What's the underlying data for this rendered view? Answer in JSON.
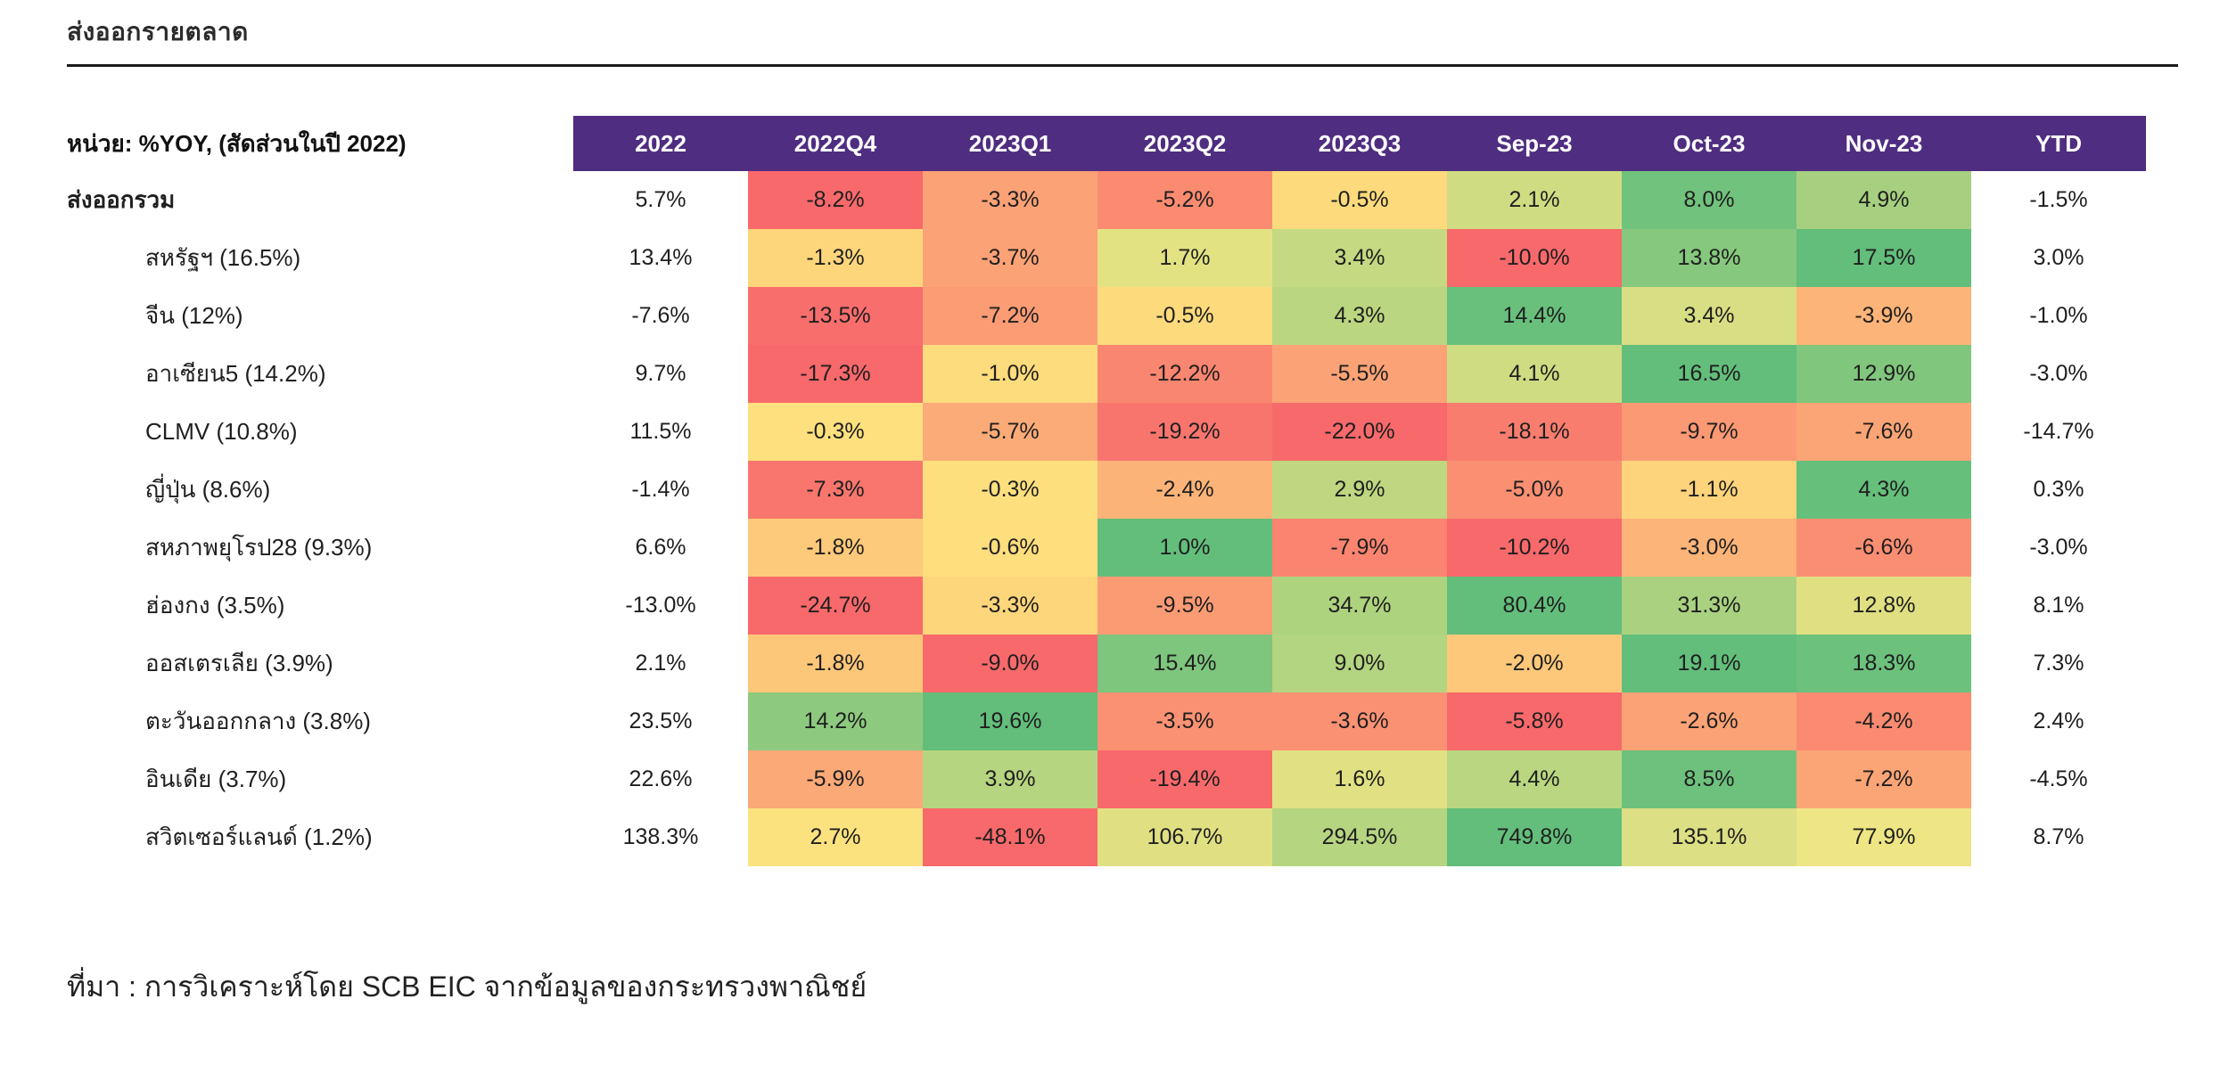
{
  "page": {
    "title": "ส่งออกรายตลาด",
    "source_note": "ที่มา : การวิเคราะห์โดย SCB EIC จากข้อมูลของกระทรวงพาณิชย์"
  },
  "colors": {
    "header_bg": "#4F2D80",
    "header_text": "#FFFFFF",
    "scale_min_red": "#F8696B",
    "scale_mid_yellow": "#FFEB84",
    "scale_max_green": "#63BE7B"
  },
  "table": {
    "unit_label": "หน่วย: %YOY, (สัดส่วนในปี 2022)",
    "columns": [
      "2022",
      "2022Q4",
      "2023Q1",
      "2023Q2",
      "2023Q3",
      "Sep-23",
      "Oct-23",
      "Nov-23",
      "YTD"
    ],
    "rows": [
      {
        "label": "ส่งออกรวม",
        "bold": true,
        "indent": false,
        "values": [
          "5.7%",
          "-8.2%",
          "-3.3%",
          "-5.2%",
          "-0.5%",
          "2.1%",
          "8.0%",
          "4.9%",
          "-1.5%"
        ],
        "colors": [
          null,
          "#F8696B",
          "#FCA277",
          "#FA8B71",
          "#FDDA7C",
          "#D0DC82",
          "#71C27C",
          "#A6D07F",
          null
        ]
      },
      {
        "label": "สหรัฐฯ (16.5%)",
        "bold": false,
        "indent": true,
        "values": [
          "13.4%",
          "-1.3%",
          "-3.7%",
          "1.7%",
          "3.4%",
          "-10.0%",
          "13.8%",
          "17.5%",
          "3.0%"
        ],
        "colors": [
          null,
          "#FDD67B",
          "#FBA276",
          "#E3E283",
          "#C4D981",
          "#F8696B",
          "#86C87D",
          "#63BE7B",
          null
        ]
      },
      {
        "label": "จีน (12%)",
        "bold": false,
        "indent": true,
        "values": [
          "-7.6%",
          "-13.5%",
          "-7.2%",
          "-0.5%",
          "4.3%",
          "14.4%",
          "3.4%",
          "-3.9%",
          "-1.0%"
        ],
        "colors": [
          null,
          "#F86E6C",
          "#FB9C75",
          "#FDDA7C",
          "#BBD680",
          "#68C07C",
          "#D8DE83",
          "#FCB478",
          null
        ]
      },
      {
        "label": "อาเซียน5 (14.2%)",
        "bold": false,
        "indent": true,
        "values": [
          "9.7%",
          "-17.3%",
          "-1.0%",
          "-12.2%",
          "-5.5%",
          "4.1%",
          "16.5%",
          "12.9%",
          "-3.0%"
        ],
        "colors": [
          null,
          "#F8696B",
          "#FDDC7D",
          "#F98670",
          "#FBA376",
          "#CFDC82",
          "#63BE7B",
          "#81C67D",
          null
        ]
      },
      {
        "label": "CLMV (10.8%)",
        "bold": false,
        "indent": true,
        "values": [
          "11.5%",
          "-0.3%",
          "-5.7%",
          "-19.2%",
          "-22.0%",
          "-18.1%",
          "-9.7%",
          "-7.6%",
          "-14.7%"
        ],
        "colors": [
          null,
          "#FEE07E",
          "#FBAB77",
          "#F8756D",
          "#F8696B",
          "#F97D6F",
          "#FA9974",
          "#FBA476",
          null
        ]
      },
      {
        "label": "ญี่ปุ่น (8.6%)",
        "bold": false,
        "indent": true,
        "values": [
          "-1.4%",
          "-7.3%",
          "-0.3%",
          "-2.4%",
          "2.9%",
          "-5.0%",
          "-1.1%",
          "4.3%",
          "0.3%"
        ],
        "colors": [
          null,
          "#F8766E",
          "#FEDF7E",
          "#FCB378",
          "#BED780",
          "#FA8F72",
          "#FDD37B",
          "#66BF7B",
          null
        ]
      },
      {
        "label": "สหภาพยุโรป28 (9.3%)",
        "bold": false,
        "indent": true,
        "values": [
          "6.6%",
          "-1.8%",
          "-0.6%",
          "1.0%",
          "-7.9%",
          "-10.2%",
          "-3.0%",
          "-6.6%",
          "-3.0%"
        ],
        "colors": [
          null,
          "#FDC97A",
          "#FEDE7D",
          "#63BE7B",
          "#FA8470",
          "#F8696B",
          "#FCB478",
          "#FA8E72",
          null
        ]
      },
      {
        "label": "ฮ่องกง (3.5%)",
        "bold": false,
        "indent": true,
        "values": [
          "-13.0%",
          "-24.7%",
          "-3.3%",
          "-9.5%",
          "34.7%",
          "80.4%",
          "31.3%",
          "12.8%",
          "8.1%"
        ],
        "colors": [
          null,
          "#F8696B",
          "#FDD67B",
          "#FB9B74",
          "#AED37F",
          "#63BE7B",
          "#A9D17F",
          "#E0E083",
          null
        ]
      },
      {
        "label": "ออสเตรเลีย (3.9%)",
        "bold": false,
        "indent": true,
        "values": [
          "2.1%",
          "-1.8%",
          "-9.0%",
          "15.4%",
          "9.0%",
          "-2.0%",
          "19.1%",
          "18.3%",
          "7.3%"
        ],
        "colors": [
          null,
          "#FDC77A",
          "#F8696B",
          "#7EC57D",
          "#B3D480",
          "#FDC87A",
          "#63BE7B",
          "#6CC17C",
          null
        ]
      },
      {
        "label": "ตะวันออกกลาง (3.8%)",
        "bold": false,
        "indent": true,
        "values": [
          "23.5%",
          "14.2%",
          "19.6%",
          "-3.5%",
          "-3.6%",
          "-5.8%",
          "-2.6%",
          "-4.2%",
          "2.4%"
        ],
        "colors": [
          null,
          "#8DC97E",
          "#63BE7B",
          "#FA9173",
          "#FA9173",
          "#F8696B",
          "#FBA276",
          "#FA8B71",
          null
        ]
      },
      {
        "label": "อินเดีย (3.7%)",
        "bold": false,
        "indent": true,
        "values": [
          "22.6%",
          "-5.9%",
          "3.9%",
          "-19.4%",
          "1.6%",
          "4.4%",
          "8.5%",
          "-7.2%",
          "-4.5%"
        ],
        "colors": [
          null,
          "#FBA977",
          "#B6D580",
          "#F8696B",
          "#E1E183",
          "#BAD680",
          "#6EC17C",
          "#FBA476",
          null
        ]
      },
      {
        "label": "สวิตเซอร์แลนด์ (1.2%)",
        "bold": false,
        "indent": true,
        "values": [
          "138.3%",
          "2.7%",
          "-48.1%",
          "106.7%",
          "294.5%",
          "749.8%",
          "135.1%",
          "77.9%",
          "8.7%"
        ],
        "colors": [
          null,
          "#FCE27F",
          "#F8696B",
          "#E0E083",
          "#B6D580",
          "#63BE7B",
          "#DCDF83",
          "#EEE584",
          null
        ]
      }
    ]
  },
  "chart_data": {
    "type": "heatmap",
    "title": "ส่งออกรายตลาด",
    "unit": "%YOY, (สัดส่วนในปี 2022)",
    "columns": [
      "2022",
      "2022Q4",
      "2023Q1",
      "2023Q2",
      "2023Q3",
      "Sep-23",
      "Oct-23",
      "Nov-23",
      "YTD"
    ],
    "heatmap_columns": [
      "2022Q4",
      "2023Q1",
      "2023Q2",
      "2023Q3",
      "Sep-23",
      "Oct-23",
      "Nov-23"
    ],
    "series": [
      {
        "name": "ส่งออกรวม",
        "values": [
          5.7,
          -8.2,
          -3.3,
          -5.2,
          -0.5,
          2.1,
          8.0,
          4.9,
          -1.5
        ]
      },
      {
        "name": "สหรัฐฯ (16.5%)",
        "values": [
          13.4,
          -1.3,
          -3.7,
          1.7,
          3.4,
          -10.0,
          13.8,
          17.5,
          3.0
        ]
      },
      {
        "name": "จีน (12%)",
        "values": [
          -7.6,
          -13.5,
          -7.2,
          -0.5,
          4.3,
          14.4,
          3.4,
          -3.9,
          -1.0
        ]
      },
      {
        "name": "อาเซียน5 (14.2%)",
        "values": [
          9.7,
          -17.3,
          -1.0,
          -12.2,
          -5.5,
          4.1,
          16.5,
          12.9,
          -3.0
        ]
      },
      {
        "name": "CLMV (10.8%)",
        "values": [
          11.5,
          -0.3,
          -5.7,
          -19.2,
          -22.0,
          -18.1,
          -9.7,
          -7.6,
          -14.7
        ]
      },
      {
        "name": "ญี่ปุ่น (8.6%)",
        "values": [
          -1.4,
          -7.3,
          -0.3,
          -2.4,
          2.9,
          -5.0,
          -1.1,
          4.3,
          0.3
        ]
      },
      {
        "name": "สหภาพยุโรป28 (9.3%)",
        "values": [
          6.6,
          -1.8,
          -0.6,
          1.0,
          -7.9,
          -10.2,
          -3.0,
          -6.6,
          -3.0
        ]
      },
      {
        "name": "ฮ่องกง (3.5%)",
        "values": [
          -13.0,
          -24.7,
          -3.3,
          -9.5,
          34.7,
          80.4,
          31.3,
          12.8,
          8.1
        ]
      },
      {
        "name": "ออสเตรเลีย (3.9%)",
        "values": [
          2.1,
          -1.8,
          -9.0,
          15.4,
          9.0,
          -2.0,
          19.1,
          18.3,
          7.3
        ]
      },
      {
        "name": "ตะวันออกกลาง (3.8%)",
        "values": [
          23.5,
          14.2,
          19.6,
          -3.5,
          -3.6,
          -5.8,
          -2.6,
          -4.2,
          2.4
        ]
      },
      {
        "name": "อินเดีย (3.7%)",
        "values": [
          22.6,
          -5.9,
          3.9,
          -19.4,
          1.6,
          4.4,
          8.5,
          -7.2,
          -4.5
        ]
      },
      {
        "name": "สวิตเซอร์แลนด์ (1.2%)",
        "values": [
          138.3,
          2.7,
          -48.1,
          106.7,
          294.5,
          749.8,
          135.1,
          77.9,
          8.7
        ]
      }
    ],
    "color_scale": {
      "low": "#F8696B",
      "mid": "#FFEB84",
      "high": "#63BE7B"
    },
    "source": "ที่มา : การวิเคราะห์โดย SCB EIC จากข้อมูลของกระทรวงพาณิชย์"
  }
}
